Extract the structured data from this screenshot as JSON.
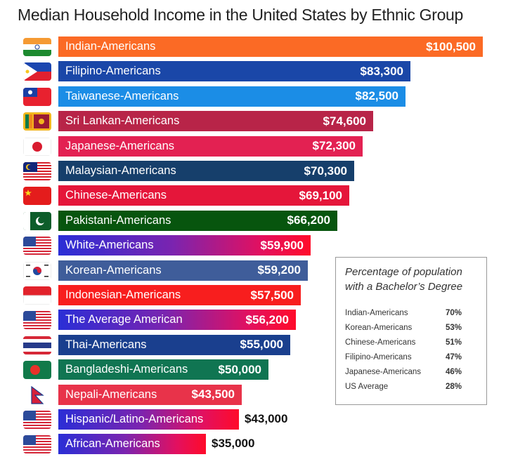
{
  "title": "Median Household Income in the United States  by Ethnic Group",
  "chart_data": {
    "type": "bar",
    "orientation": "horizontal",
    "title": "Median Household Income in the United States by Ethnic Group",
    "xlabel": "",
    "ylabel": "",
    "categories": [
      "Indian-Americans",
      "Filipino-Americans",
      "Taiwanese-Americans",
      "Sri Lankan-Americans",
      "Japanese-Americans",
      "Malaysian-Americans",
      "Chinese-Americans",
      "Pakistani-Americans",
      "White-Americans",
      "Korean-Americans",
      "Indonesian-Americans",
      "The Average American",
      "Thai-Americans",
      "Bangladeshi-Americans",
      "Nepali-Americans",
      "Hispanic/Latino-Americans",
      "African-Americans"
    ],
    "values": [
      100500,
      83300,
      82500,
      74600,
      72300,
      70300,
      69100,
      66200,
      59900,
      59200,
      57500,
      56200,
      55000,
      50000,
      43500,
      43000,
      35000
    ],
    "value_labels": [
      "$100,500",
      "$83,300",
      "$82,500",
      "$74,600",
      "$72,300",
      "$70,300",
      "$69,100",
      "$66,200",
      "$59,900",
      "$59,200",
      "$57,500",
      "$56,200",
      "$55,000",
      "$50,000",
      "$43,500",
      "$43,000",
      "$35,000"
    ],
    "grid": false,
    "inset_table": {
      "title": "Percentage of population with a Bachelor's Degree",
      "rows": [
        {
          "group": "Indian-Americans",
          "pct": 70
        },
        {
          "group": "Korean-Americans",
          "pct": 53
        },
        {
          "group": "Chinese-Americans",
          "pct": 51
        },
        {
          "group": "Filipino-Americans",
          "pct": 47
        },
        {
          "group": "Japanese-Americans",
          "pct": 46
        },
        {
          "group": "US Average",
          "pct": 28
        }
      ]
    }
  },
  "bars": [
    {
      "label": "Indian-Americans",
      "value": "$100,500",
      "flag": "india-flag",
      "color": "#fb6a25",
      "outside": false
    },
    {
      "label": "Filipino-Americans",
      "value": "$83,300",
      "flag": "philippines-flag",
      "color": "#1a47a8",
      "outside": false
    },
    {
      "label": "Taiwanese-Americans",
      "value": "$82,500",
      "flag": "taiwan-flag",
      "color": "#1b8de6",
      "outside": false
    },
    {
      "label": "Sri Lankan-Americans",
      "value": "$74,600",
      "flag": "sri-lanka-flag",
      "color": "#b82448",
      "outside": false
    },
    {
      "label": "Japanese-Americans",
      "value": "$72,300",
      "flag": "japan-flag",
      "color": "#e32152",
      "outside": false
    },
    {
      "label": "Malaysian-Americans",
      "value": "$70,300",
      "flag": "malaysia-flag",
      "color": "#163f6b",
      "outside": false
    },
    {
      "label": "Chinese-Americans",
      "value": "$69,100",
      "flag": "china-flag",
      "color": "#e5163a",
      "outside": false
    },
    {
      "label": "Pakistani-Americans",
      "value": "$66,200",
      "flag": "pakistan-flag",
      "color": "#07550e",
      "outside": false
    },
    {
      "label": "White-Americans",
      "value": "$59,900",
      "flag": "usa-flag",
      "color": "gradient",
      "outside": false
    },
    {
      "label": "Korean-Americans",
      "value": "$59,200",
      "flag": "korea-flag",
      "color": "#3f5d9a",
      "outside": false
    },
    {
      "label": "Indonesian-Americans",
      "value": "$57,500",
      "flag": "indonesia-flag",
      "color": "#f81e1e",
      "outside": false
    },
    {
      "label": "The Average American",
      "value": "$56,200",
      "flag": "usa-flag",
      "color": "gradient",
      "outside": false
    },
    {
      "label": "Thai-Americans",
      "value": "$55,000",
      "flag": "thailand-flag",
      "color": "#1a3f8e",
      "outside": false
    },
    {
      "label": "Bangladeshi-Americans",
      "value": "$50,000",
      "flag": "bangladesh-flag",
      "color": "#107552",
      "outside": false
    },
    {
      "label": "Nepali-Americans",
      "value": "$43,500",
      "flag": "nepal-flag",
      "color": "#e8334a",
      "outside": false
    },
    {
      "label": "Hispanic/Latino-Americans",
      "value": "$43,000",
      "flag": "usa-flag",
      "color": "gradient",
      "outside": true
    },
    {
      "label": "African-Americans",
      "value": "$35,000",
      "flag": "usa-flag",
      "color": "gradient",
      "outside": true
    }
  ],
  "inset": {
    "title_line1": "Percentage of population",
    "title_line2": "with a Bachelor’s Degree",
    "rows": [
      {
        "group": "Indian-Americans",
        "pct": "70%"
      },
      {
        "group": "Korean-Americans",
        "pct": "53%"
      },
      {
        "group": "Chinese-Americans",
        "pct": "51%"
      },
      {
        "group": "Filipino-Americans",
        "pct": "47%"
      },
      {
        "group": "Japanese-Americans",
        "pct": "46%"
      },
      {
        "group": "US Average",
        "pct": "28%"
      }
    ]
  }
}
